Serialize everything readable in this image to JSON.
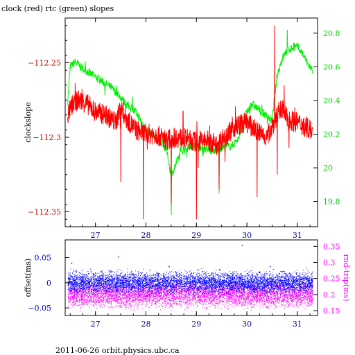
{
  "title": "clock (red) rtc (green) slopes",
  "footer": "2011-06-26  orbit.physics.ubc.ca",
  "colors": {
    "clock": "#ff0000",
    "rtc": "#00ee00",
    "offset": "#0000ff",
    "rndtrip": "#ff00ff",
    "left_axis_top": "#cc0000",
    "right_axis_top": "#00cc00",
    "left_axis_bottom": "#0000cc",
    "right_axis_bottom": "#ff00ff",
    "axis": "#000000"
  },
  "chart_data": [
    {
      "type": "line",
      "title": "clock (red) rtc (green) slopes",
      "ylabel": "clockslope",
      "xlabel": "",
      "xlim": [
        26.4,
        31.4
      ],
      "ylim": [
        -112.36,
        -112.22
      ],
      "y2lim": [
        19.65,
        20.89
      ],
      "x_ticks": [
        "27",
        "28",
        "29",
        "30",
        "31"
      ],
      "y_ticks": [
        "-112.25",
        "-112.3",
        "-112.35"
      ],
      "y2_ticks": [
        "20.8",
        "20.6",
        "20.4",
        "20.2",
        "20",
        "19.8"
      ],
      "series": [
        {
          "name": "clock",
          "axis": "left",
          "x": [
            26.45,
            26.55,
            26.65,
            26.75,
            26.85,
            27.0,
            27.2,
            27.4,
            27.5,
            27.6,
            27.8,
            28.0,
            28.2,
            28.4,
            28.6,
            28.8,
            29.0,
            29.2,
            29.4,
            29.6,
            29.8,
            30.0,
            30.2,
            30.4,
            30.6,
            30.7,
            30.8,
            31.0,
            31.1,
            31.2,
            31.3
          ],
          "y": [
            -112.285,
            -112.278,
            -112.275,
            -112.276,
            -112.278,
            -112.283,
            -112.285,
            -112.29,
            -112.28,
            -112.287,
            -112.295,
            -112.298,
            -112.298,
            -112.302,
            -112.3,
            -112.301,
            -112.303,
            -112.302,
            -112.305,
            -112.298,
            -112.292,
            -112.29,
            -112.296,
            -112.3,
            -112.285,
            -112.28,
            -112.288,
            -112.29,
            -112.292,
            -112.294,
            -112.295
          ],
          "spikes": [
            {
              "x": 27.5,
              "y": -112.33
            },
            {
              "x": 27.95,
              "y": -112.355
            },
            {
              "x": 28.5,
              "y": -112.345
            },
            {
              "x": 29.0,
              "y": -112.355
            },
            {
              "x": 29.45,
              "y": -112.335
            },
            {
              "x": 30.2,
              "y": -112.34
            },
            {
              "x": 30.55,
              "y": -112.225
            },
            {
              "x": 30.6,
              "y": -112.325
            },
            {
              "x": 30.95,
              "y": -112.28
            }
          ]
        },
        {
          "name": "rtc",
          "axis": "right",
          "x": [
            26.45,
            26.5,
            26.6,
            26.7,
            26.9,
            27.1,
            27.3,
            27.5,
            27.6,
            27.8,
            28.0,
            28.2,
            28.4,
            28.5,
            28.7,
            28.9,
            29.1,
            29.3,
            29.5,
            29.7,
            29.85,
            29.95,
            30.1,
            30.3,
            30.5,
            30.6,
            30.7,
            30.8,
            31.0,
            31.1,
            31.2,
            31.3
          ],
          "y": [
            20.4,
            20.6,
            20.63,
            20.6,
            20.56,
            20.52,
            20.48,
            20.42,
            20.38,
            20.33,
            20.23,
            20.18,
            20.12,
            19.95,
            20.1,
            20.13,
            20.12,
            20.1,
            20.12,
            20.13,
            20.18,
            20.3,
            20.38,
            20.33,
            20.28,
            20.55,
            20.65,
            20.7,
            20.72,
            20.68,
            20.62,
            20.58
          ],
          "spikes": [
            {
              "x": 28.5,
              "y": 19.72
            },
            {
              "x": 29.45,
              "y": 19.85
            },
            {
              "x": 30.8,
              "y": 20.82
            }
          ]
        }
      ]
    },
    {
      "type": "scatter",
      "xlim": [
        26.4,
        31.4
      ],
      "ylim": [
        -0.065,
        0.085
      ],
      "y2lim": [
        0.135,
        0.37
      ],
      "ylabel": "offset(ms)",
      "y2label": "rnd-trip(ms)",
      "x_ticks": [
        "27",
        "28",
        "29",
        "30",
        "31"
      ],
      "y_ticks": [
        "0.05",
        "0",
        "-0.05"
      ],
      "y2_ticks": [
        "0.35",
        "0.3",
        "0.25",
        "0.2",
        "0.15"
      ],
      "series": [
        {
          "name": "offset",
          "axis": "left",
          "x_range": [
            26.45,
            31.3
          ],
          "mean": 0.0,
          "spread": 0.01,
          "outliers": [
            {
              "x": 26.52,
              "y": 0.04
            },
            {
              "x": 27.45,
              "y": 0.052
            },
            {
              "x": 28.45,
              "y": 0.033
            },
            {
              "x": 29.45,
              "y": 0.027
            },
            {
              "x": 29.9,
              "y": 0.075
            },
            {
              "x": 30.45,
              "y": 0.033
            }
          ]
        },
        {
          "name": "rnd-trip",
          "axis": "right",
          "x_range": [
            26.45,
            31.3
          ],
          "mean": 0.2,
          "spread": 0.018
        }
      ]
    }
  ]
}
